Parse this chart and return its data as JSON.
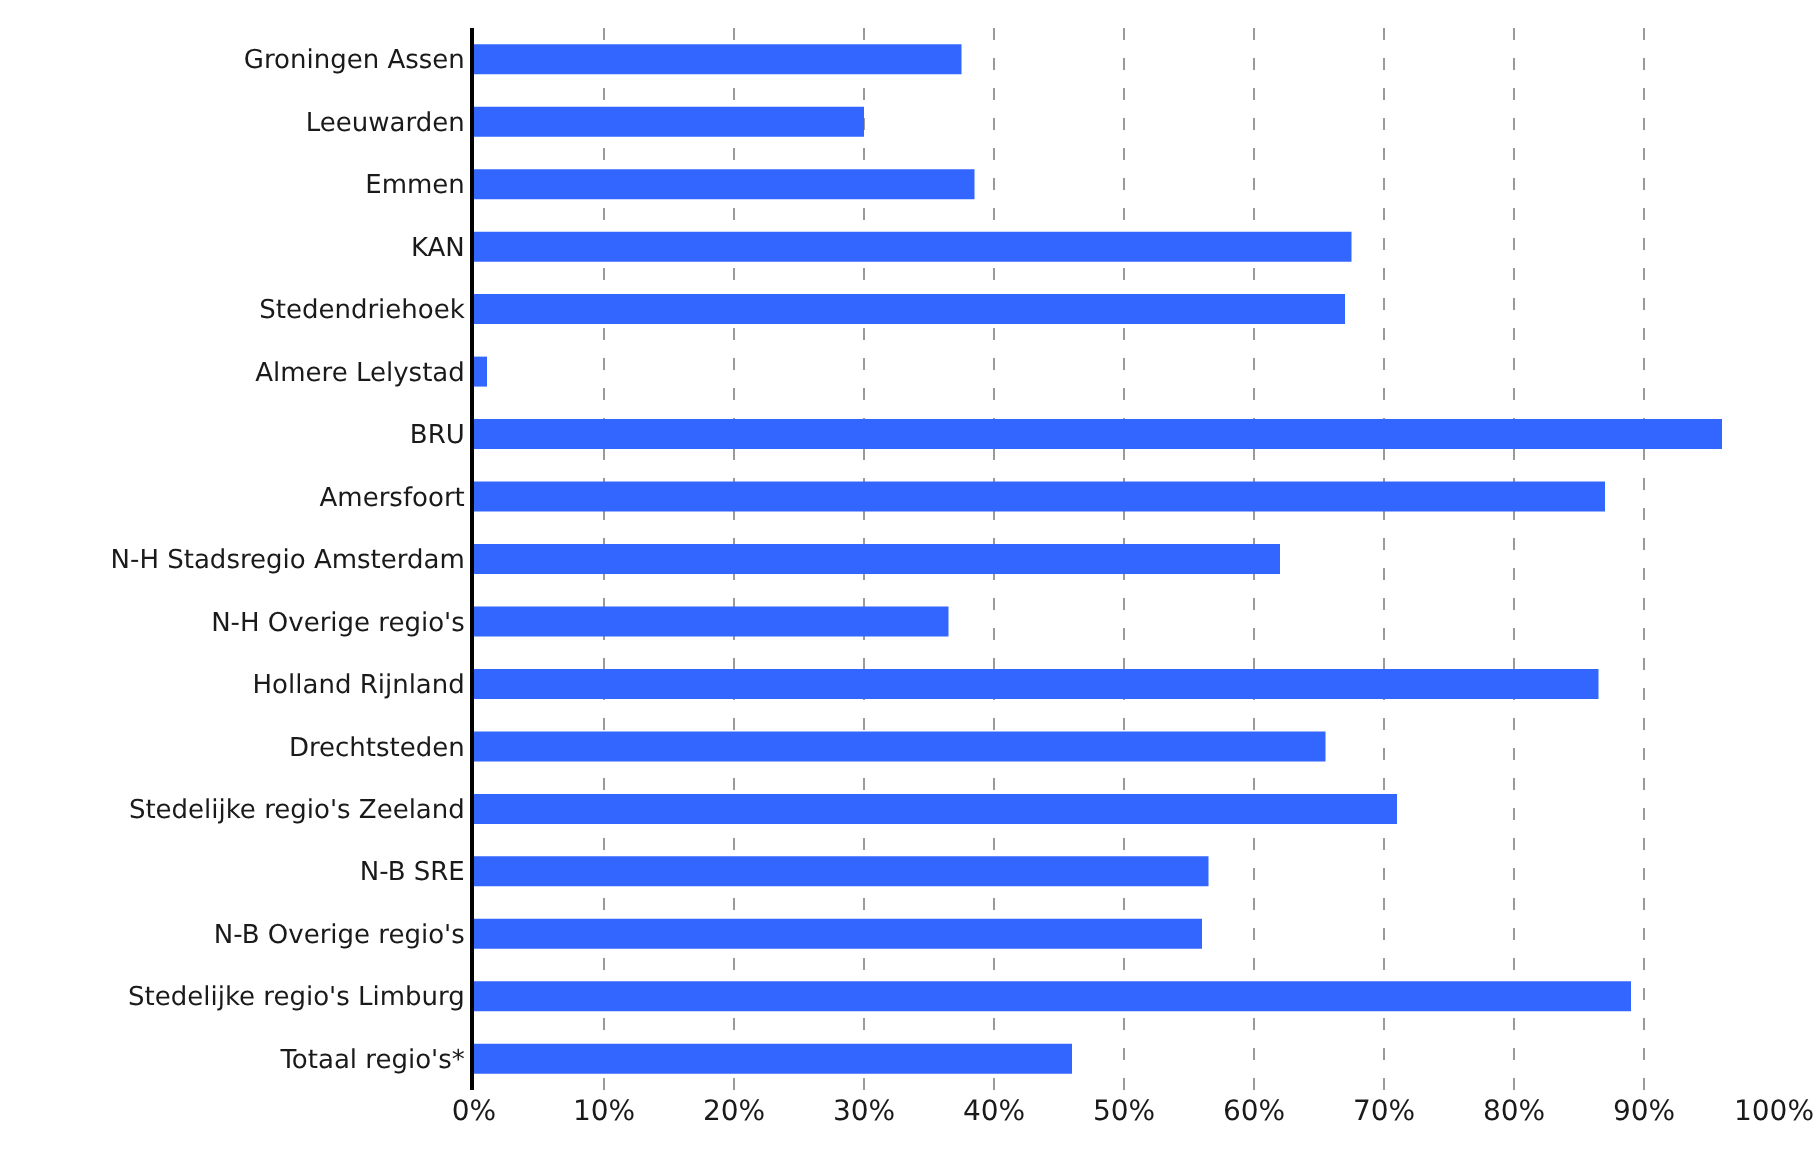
{
  "chart_data": {
    "type": "bar",
    "orientation": "horizontal",
    "categories": [
      "Groningen Assen",
      "Leeuwarden",
      "Emmen",
      "KAN",
      "Stedendriehoek",
      "Almere Lelystad",
      "BRU",
      "Amersfoort",
      "N-H Stadsregio Amsterdam",
      "N-H Overige regio's",
      "Holland Rijnland",
      "Drechtsteden",
      "Stedelijke regio's Zeeland",
      "N-B SRE",
      "N-B Overige regio's",
      "Stedelijke regio's Limburg",
      "Totaal regio's*"
    ],
    "values": [
      37.5,
      30,
      38.5,
      67.5,
      67,
      1,
      96,
      87,
      62,
      36.5,
      86.5,
      65.5,
      71,
      56.5,
      56,
      89,
      46
    ],
    "color": "#3366ff",
    "xlim": [
      0,
      100
    ],
    "xticks": [
      {
        "value": 0,
        "label": "0%"
      },
      {
        "value": 10,
        "label": "10%"
      },
      {
        "value": 20,
        "label": "20%"
      },
      {
        "value": 30,
        "label": "30%"
      },
      {
        "value": 40,
        "label": "40%"
      },
      {
        "value": 50,
        "label": "50%"
      },
      {
        "value": 60,
        "label": "60%"
      },
      {
        "value": 70,
        "label": "70%"
      },
      {
        "value": 80,
        "label": "80%"
      },
      {
        "value": 90,
        "label": "90%"
      },
      {
        "value": 100,
        "label": "100%"
      }
    ],
    "grid": "x"
  }
}
